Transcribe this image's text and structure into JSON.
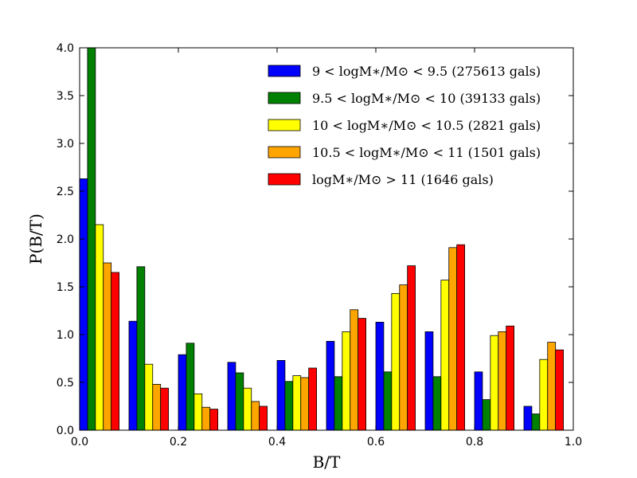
{
  "chart_data": {
    "type": "bar",
    "title": "",
    "xlabel": "B/T",
    "ylabel": "P(B/T)",
    "xlim": [
      0,
      1.0
    ],
    "ylim": [
      0,
      4.0
    ],
    "x_ticks": [
      "0.0",
      "0.2",
      "0.4",
      "0.6",
      "0.8",
      "1.0"
    ],
    "y_ticks": [
      "0.0",
      "0.5",
      "1.0",
      "1.5",
      "2.0",
      "2.5",
      "3.0",
      "3.5",
      "4.0"
    ],
    "grid": false,
    "legend_position": "top-right",
    "bin_edges": [
      0.0,
      0.1,
      0.2,
      0.3,
      0.4,
      0.5,
      0.6,
      0.7,
      0.8,
      0.9,
      1.0
    ],
    "series": [
      {
        "name": "9 < logM∗/M⊙ < 9.5  (275613 gals)",
        "color": "#0000ff",
        "values": [
          2.63,
          1.14,
          0.79,
          0.71,
          0.73,
          0.93,
          1.13,
          1.03,
          0.61,
          0.25
        ]
      },
      {
        "name": "9.5 < logM∗/M⊙ < 10  (39133 gals)",
        "color": "#008000",
        "values": [
          4.0,
          1.71,
          0.91,
          0.6,
          0.51,
          0.56,
          0.61,
          0.56,
          0.32,
          0.17
        ]
      },
      {
        "name": "10 < logM∗/M⊙ < 10.5  (2821 gals)",
        "color": "#ffff00",
        "values": [
          2.15,
          0.69,
          0.38,
          0.44,
          0.57,
          1.03,
          1.43,
          1.57,
          0.99,
          0.74
        ]
      },
      {
        "name": "10.5 < logM∗/M⊙ < 11  (1501 gals)",
        "color": "#ffa500",
        "values": [
          1.75,
          0.48,
          0.24,
          0.3,
          0.55,
          1.26,
          1.52,
          1.91,
          1.03,
          0.92
        ]
      },
      {
        "name": "logM∗/M⊙ > 11  (1646 gals)",
        "color": "#ff0000",
        "values": [
          1.65,
          0.44,
          0.22,
          0.25,
          0.65,
          1.17,
          1.72,
          1.94,
          1.09,
          0.84
        ]
      }
    ]
  }
}
